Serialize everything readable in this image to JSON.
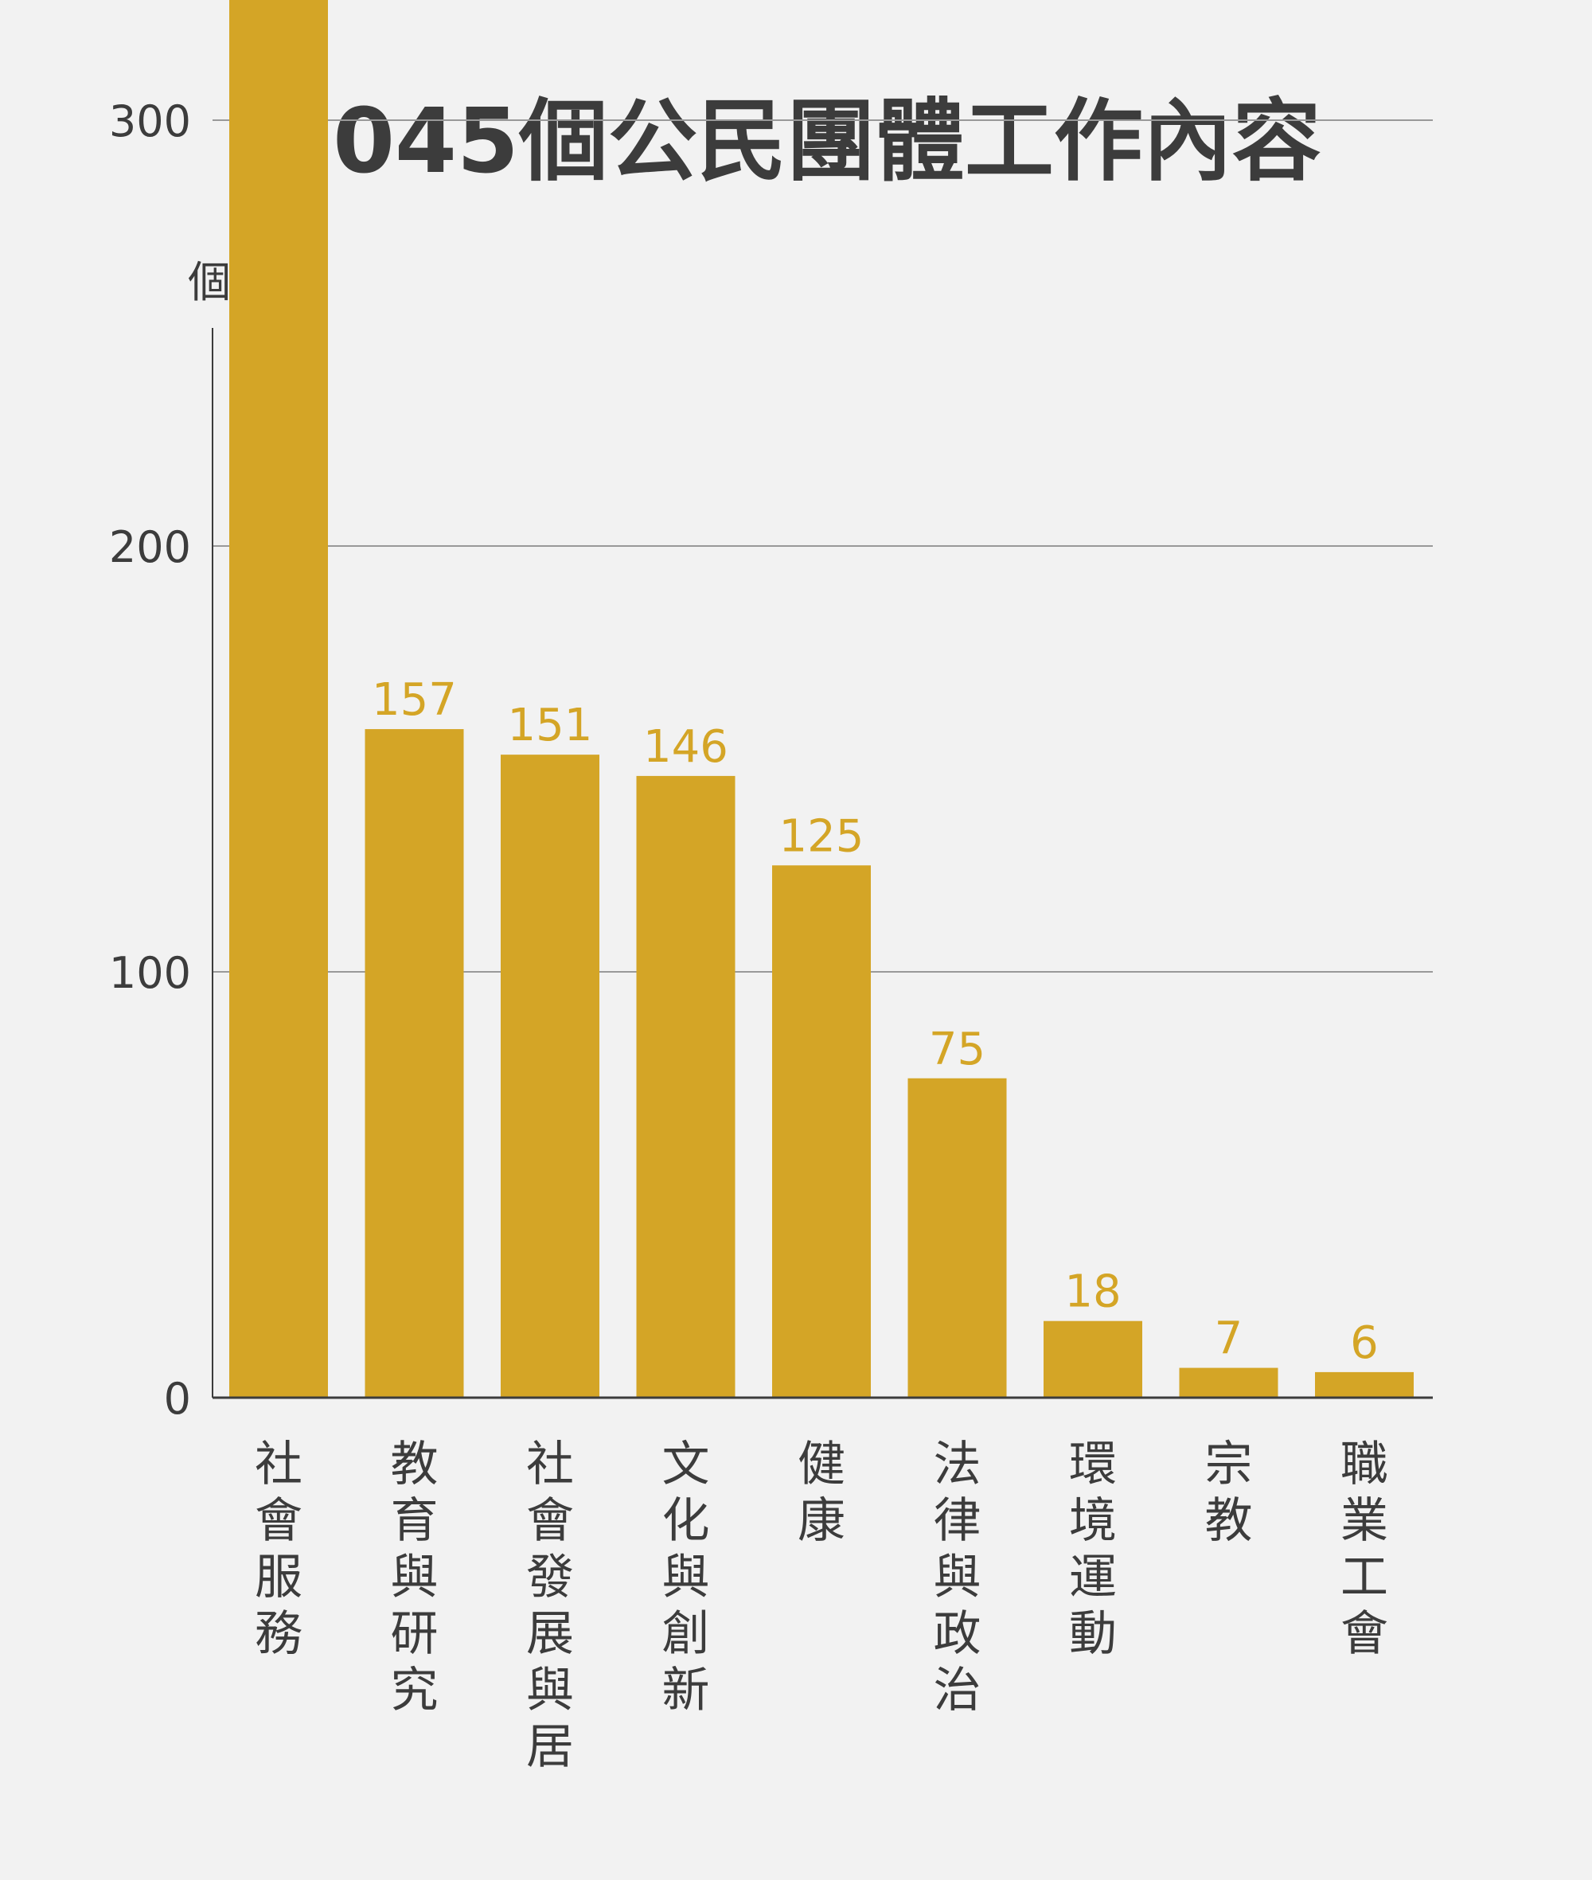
{
  "chart_data": {
    "type": "bar",
    "title": "1045個公民團體工作內容",
    "ylabel": "個",
    "xlabel": "",
    "ylim": [
      0,
      375
    ],
    "yticks": [
      0,
      100,
      200,
      300
    ],
    "grid": true,
    "categories": [
      "社會服務",
      "教育與研究",
      "社會發展與居",
      "文化與創新",
      "健康",
      "法律與政治",
      "環境運動",
      "宗教",
      "職業工會"
    ],
    "values": [
      349,
      157,
      151,
      146,
      125,
      75,
      18,
      7,
      6
    ],
    "colors": {
      "bar": "#d4a526",
      "value_label": "#d4a526",
      "text": "#3c3c3c",
      "grid": "#999999",
      "axis": "#3c3c3c",
      "background": "#f2f2f2"
    }
  }
}
